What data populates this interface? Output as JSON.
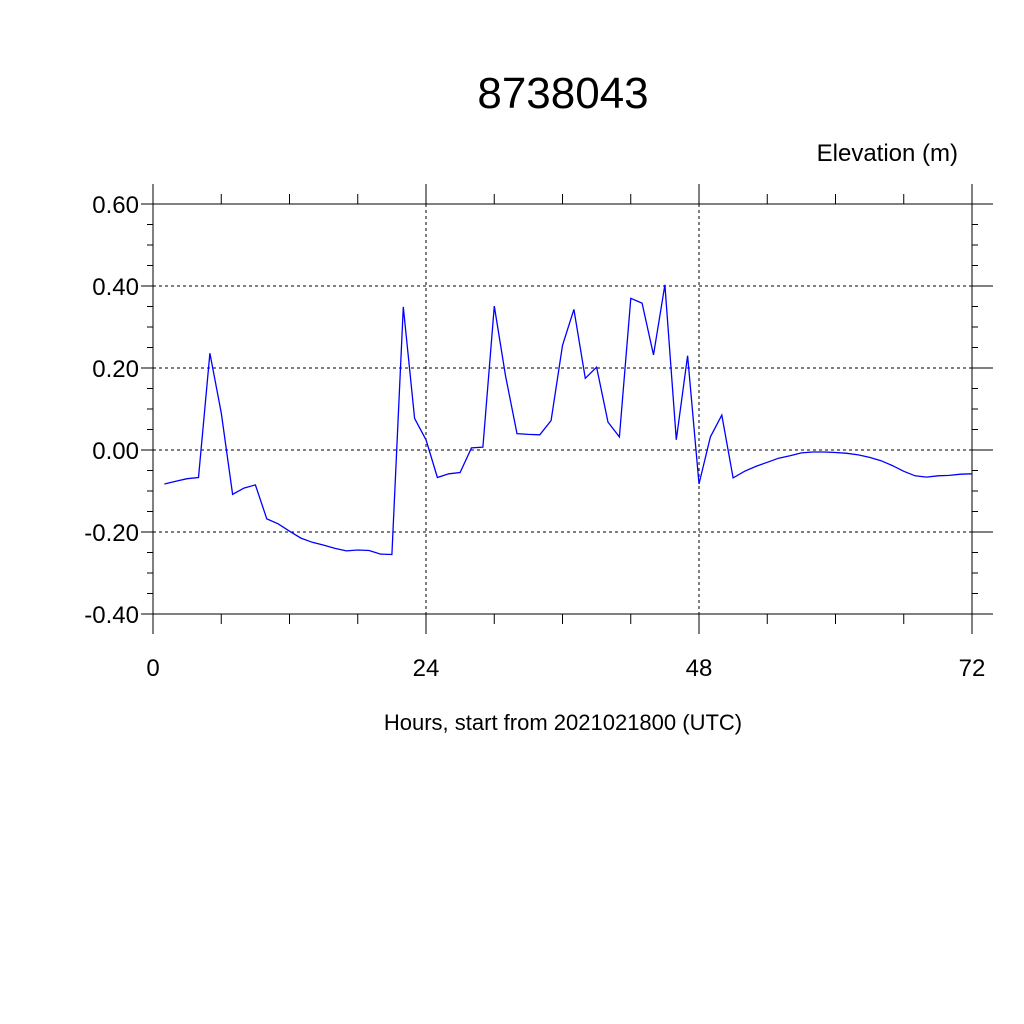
{
  "chart_data": {
    "type": "line",
    "title": "8738043",
    "ylabel": "Elevation (m)",
    "xlabel": "Hours, start from 2021021800 (UTC)",
    "xlim": [
      0,
      72
    ],
    "ylim": [
      -0.4,
      0.6
    ],
    "x_ticks": [
      0,
      24,
      48,
      72
    ],
    "x_tick_labels": [
      "0",
      "24",
      "48",
      "72"
    ],
    "y_ticks": [
      -0.4,
      -0.2,
      0.0,
      0.2,
      0.4,
      0.6
    ],
    "y_tick_labels": [
      "-0.40",
      "-0.20",
      "0.00",
      "0.20",
      "0.40",
      "0.60"
    ],
    "grid": true,
    "series": [
      {
        "color": "#0000ff",
        "x": [
          1,
          2,
          3,
          4,
          5,
          6,
          7,
          8,
          9,
          10,
          11,
          12,
          13,
          14,
          15,
          16,
          17,
          18,
          19,
          20,
          21,
          22,
          23,
          24,
          25,
          26,
          27,
          28,
          29,
          30,
          31,
          32,
          33,
          34,
          35,
          36,
          37,
          38,
          39,
          40,
          41,
          42,
          43,
          44,
          45,
          46,
          47,
          48,
          49,
          50,
          51,
          52,
          53,
          54,
          55,
          56,
          57,
          58,
          59,
          60,
          61,
          62,
          63,
          64,
          65,
          66,
          67,
          68,
          69,
          70,
          71,
          72
        ],
        "y": [
          -0.083,
          -0.076,
          -0.07,
          -0.067,
          0.236,
          0.09,
          -0.108,
          -0.093,
          -0.085,
          -0.168,
          -0.18,
          -0.198,
          -0.215,
          -0.225,
          -0.232,
          -0.24,
          -0.246,
          -0.244,
          -0.245,
          -0.254,
          -0.255,
          0.349,
          0.077,
          0.025,
          -0.067,
          -0.058,
          -0.055,
          0.005,
          0.007,
          0.351,
          0.18,
          0.04,
          0.038,
          0.037,
          0.072,
          0.255,
          0.343,
          0.175,
          0.202,
          0.068,
          0.032,
          0.37,
          0.358,
          0.232,
          0.403,
          0.025,
          0.23,
          -0.083,
          0.032,
          0.085,
          -0.068,
          -0.052,
          -0.04,
          -0.03,
          -0.02,
          -0.014,
          -0.007,
          -0.005,
          -0.005,
          -0.006,
          -0.008,
          -0.012,
          -0.018,
          -0.026,
          -0.038,
          -0.052,
          -0.063,
          -0.066,
          -0.063,
          -0.062,
          -0.059,
          -0.058
        ]
      }
    ]
  }
}
